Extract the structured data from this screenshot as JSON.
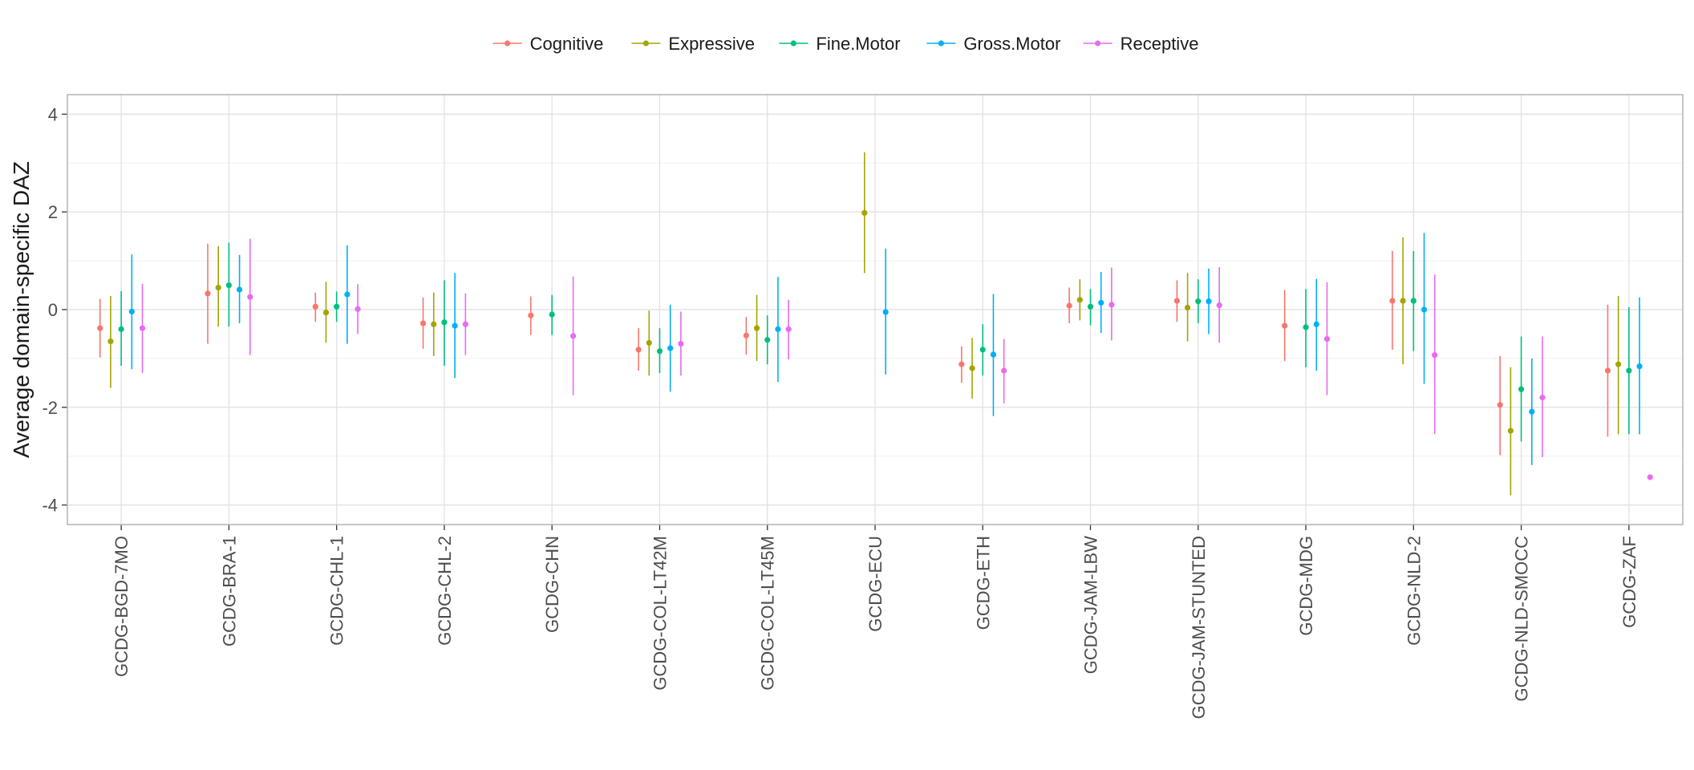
{
  "chart_data": {
    "type": "errorbar",
    "ylabel": "Average domain-specific DAZ",
    "xlabel": "",
    "ylim": [
      -4.4,
      4.4
    ],
    "yticks": [
      -4,
      -2,
      0,
      2,
      4
    ],
    "grid": true,
    "legend_position": "top",
    "categories": [
      "GCDG-BGD-7MO",
      "GCDG-BRA-1",
      "GCDG-CHL-1",
      "GCDG-CHL-2",
      "GCDG-CHN",
      "GCDG-COL-LT42M",
      "GCDG-COL-LT45M",
      "GCDG-ECU",
      "GCDG-ETH",
      "GCDG-JAM-LBW",
      "GCDG-JAM-STUNTED",
      "GCDG-MDG",
      "GCDG-NLD-2",
      "GCDG-NLD-SMOCC",
      "GCDG-ZAF"
    ],
    "series": [
      {
        "name": "Cognitive",
        "color": "#F8766D",
        "points": [
          [
            -0.38,
            -0.98,
            0.22
          ],
          [
            0.33,
            -0.7,
            1.35
          ],
          [
            0.06,
            -0.25,
            0.35
          ],
          [
            -0.28,
            -0.8,
            0.25
          ],
          [
            -0.12,
            -0.52,
            0.27
          ],
          [
            -0.82,
            -1.25,
            -0.38
          ],
          [
            -0.53,
            -0.92,
            -0.15
          ],
          null,
          [
            -1.12,
            -1.5,
            -0.75
          ],
          [
            0.08,
            -0.28,
            0.45
          ],
          [
            0.18,
            -0.25,
            0.6
          ],
          [
            -0.33,
            -1.05,
            0.4
          ],
          [
            0.18,
            -0.82,
            1.2
          ],
          [
            -1.95,
            -2.98,
            -0.95
          ],
          [
            -1.25,
            -2.6,
            0.1
          ]
        ]
      },
      {
        "name": "Expressive",
        "color": "#A3A500",
        "points": [
          [
            -0.65,
            -1.6,
            0.28
          ],
          [
            0.45,
            -0.35,
            1.3
          ],
          [
            -0.06,
            -0.68,
            0.57
          ],
          [
            -0.3,
            -0.95,
            0.35
          ],
          null,
          [
            -0.68,
            -1.35,
            -0.02
          ],
          [
            -0.38,
            -1.05,
            0.3
          ],
          [
            1.98,
            0.75,
            3.22
          ],
          [
            -1.2,
            -1.82,
            -0.58
          ],
          [
            0.2,
            -0.22,
            0.62
          ],
          [
            0.04,
            -0.65,
            0.75
          ],
          null,
          [
            0.18,
            -1.12,
            1.48
          ],
          [
            -2.48,
            -3.8,
            -1.18
          ],
          [
            -1.12,
            -2.55,
            0.28
          ]
        ]
      },
      {
        "name": "Fine.Motor",
        "color": "#00BF7D",
        "points": [
          [
            -0.4,
            -1.15,
            0.38
          ],
          [
            0.5,
            -0.35,
            1.37
          ],
          [
            0.06,
            -0.25,
            0.37
          ],
          [
            -0.26,
            -1.15,
            0.6
          ],
          [
            -0.1,
            -0.52,
            0.3
          ],
          [
            -0.85,
            -1.3,
            -0.38
          ],
          [
            -0.62,
            -1.12,
            -0.12
          ],
          null,
          [
            -0.82,
            -1.35,
            -0.3
          ],
          [
            0.06,
            -0.32,
            0.42
          ],
          [
            0.17,
            -0.28,
            0.62
          ],
          [
            -0.36,
            -1.18,
            0.42
          ],
          [
            0.18,
            -0.85,
            1.2
          ],
          [
            -1.63,
            -2.7,
            -0.55
          ],
          [
            -1.25,
            -2.55,
            0.05
          ]
        ]
      },
      {
        "name": "Gross.Motor",
        "color": "#00B0F6",
        "points": [
          [
            -0.04,
            -1.22,
            1.13
          ],
          [
            0.41,
            -0.28,
            1.12
          ],
          [
            0.31,
            -0.7,
            1.32
          ],
          [
            -0.33,
            -1.4,
            0.75
          ],
          null,
          [
            -0.79,
            -1.68,
            0.1
          ],
          [
            -0.4,
            -1.48,
            0.67
          ],
          [
            -0.05,
            -1.33,
            1.25
          ],
          [
            -0.92,
            -2.18,
            0.32
          ],
          [
            0.14,
            -0.48,
            0.77
          ],
          [
            0.17,
            -0.5,
            0.84
          ],
          [
            -0.3,
            -1.25,
            0.63
          ],
          [
            0.0,
            -1.52,
            1.57
          ],
          [
            -2.09,
            -3.18,
            -1.0
          ],
          [
            -1.16,
            -2.55,
            0.25
          ]
        ]
      },
      {
        "name": "Receptive",
        "color": "#E76BF3",
        "points": [
          [
            -0.38,
            -1.3,
            0.53
          ],
          [
            0.26,
            -0.93,
            1.45
          ],
          [
            0.01,
            -0.5,
            0.52
          ],
          [
            -0.3,
            -0.93,
            0.33
          ],
          [
            -0.54,
            -1.75,
            0.68
          ],
          [
            -0.7,
            -1.35,
            -0.04
          ],
          [
            -0.4,
            -1.02,
            0.2
          ],
          null,
          [
            -1.25,
            -1.92,
            -0.6
          ],
          [
            0.1,
            -0.63,
            0.86
          ],
          [
            0.09,
            -0.68,
            0.87
          ],
          [
            -0.6,
            -1.75,
            0.56
          ],
          [
            -0.93,
            -2.55,
            0.72
          ],
          [
            -1.8,
            -3.02,
            -0.55
          ],
          [
            -3.43,
            -3.43,
            -3.43
          ]
        ]
      }
    ]
  }
}
